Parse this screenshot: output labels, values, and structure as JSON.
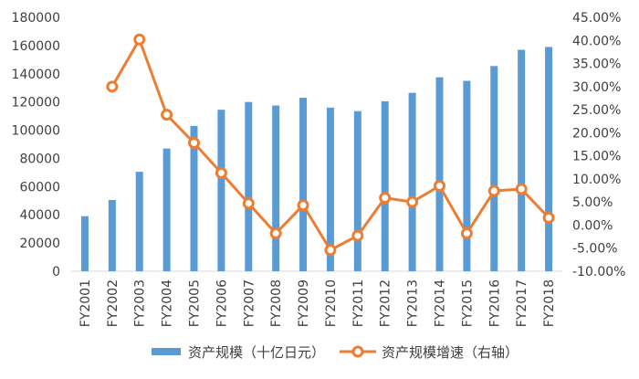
{
  "chart_data": {
    "type": "bar+line",
    "categories": [
      "FY2001",
      "FY2002",
      "FY2003",
      "FY2004",
      "FY2005",
      "FY2006",
      "FY2007",
      "FY2008",
      "FY2009",
      "FY2010",
      "FY2011",
      "FY2012",
      "FY2013",
      "FY2014",
      "FY2015",
      "FY2016",
      "FY2017",
      "FY2018"
    ],
    "series": [
      {
        "name": "资产规模（十亿日元）",
        "type": "bar",
        "axis": "left",
        "color": "#5b9bd5",
        "values": [
          39000,
          50500,
          70500,
          87000,
          103000,
          114500,
          120000,
          117500,
          123000,
          116000,
          113500,
          120500,
          126500,
          137500,
          135000,
          145500,
          157000,
          159000
        ]
      },
      {
        "name": "资产规模增速（右轴）",
        "type": "line",
        "axis": "right",
        "color": "#ed7d31",
        "values": [
          null,
          30.0,
          40.2,
          23.9,
          17.8,
          11.3,
          4.7,
          -1.8,
          4.3,
          -5.4,
          -2.3,
          5.9,
          5.0,
          8.5,
          -1.8,
          7.4,
          7.8,
          1.6
        ]
      }
    ],
    "ylim_left": [
      0,
      180000
    ],
    "ylim_right": [
      -10,
      45
    ],
    "yticks_left": [
      "0",
      "20000",
      "40000",
      "60000",
      "80000",
      "100000",
      "120000",
      "140000",
      "160000",
      "180000"
    ],
    "yticks_right": [
      "-10.00%",
      "-5.00%",
      "0.00%",
      "5.00%",
      "10.00%",
      "15.00%",
      "20.00%",
      "25.00%",
      "30.00%",
      "35.00%",
      "40.00%",
      "45.00%"
    ],
    "legend": [
      "资产规模（十亿日元）",
      "资产规模增速（右轴）"
    ],
    "legend_position": "bottom",
    "grid": false
  }
}
